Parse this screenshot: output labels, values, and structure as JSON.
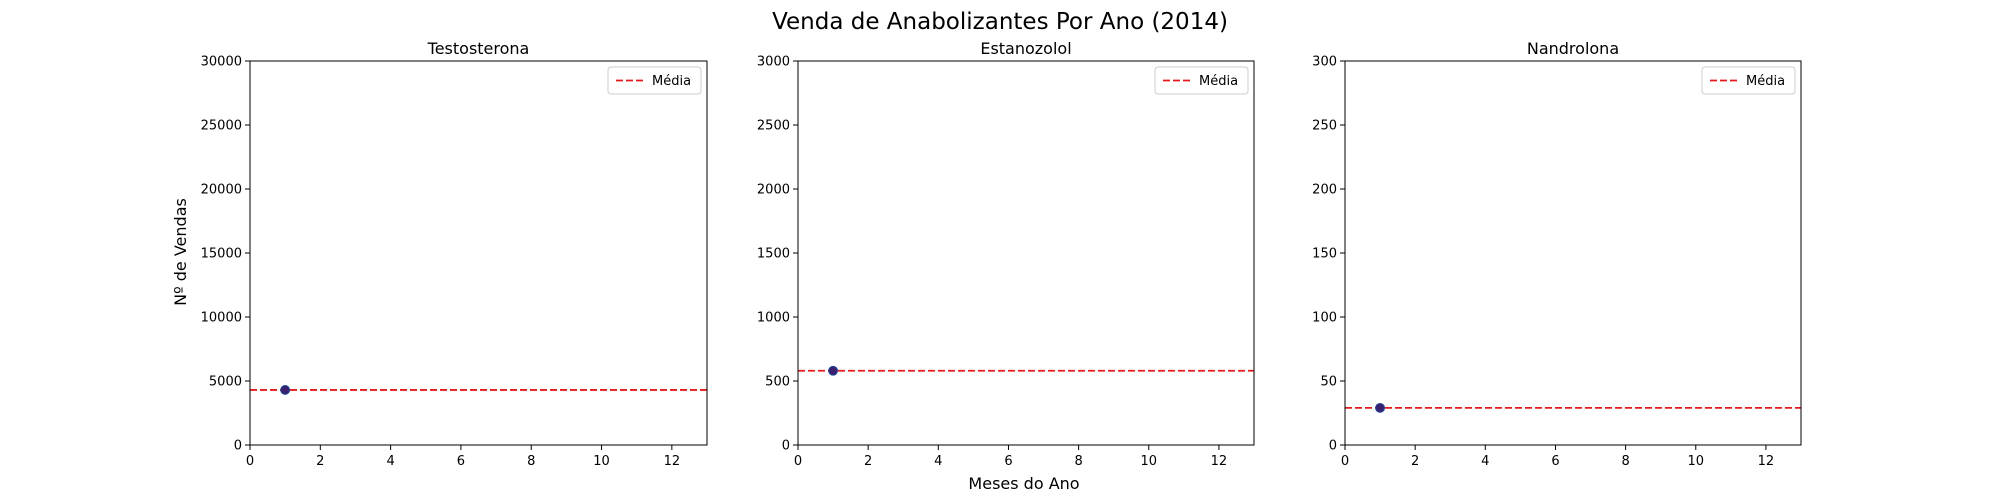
{
  "figure": {
    "title": "Venda de Anabolizantes Por Ano (2014)",
    "xlabel": "Meses do Ano",
    "ylabel": "Nº de Vendas"
  },
  "colors": {
    "marker_fill": "#3b1f6e",
    "marker_edge": "#1f3f8f",
    "mean_line": "#e41a1c",
    "axes": "#000000"
  },
  "chart_data": [
    {
      "type": "scatter",
      "title": "Testosterona",
      "x": [
        1
      ],
      "y": [
        4300
      ],
      "xlim": [
        0,
        13
      ],
      "ylim": [
        0,
        30000
      ],
      "xticks": [
        0,
        2,
        4,
        6,
        8,
        10,
        12
      ],
      "yticks": [
        0,
        5000,
        10000,
        15000,
        20000,
        25000,
        30000
      ],
      "mean": 4300,
      "legend": [
        "Média"
      ],
      "legend_position": "upper-right",
      "grid": false
    },
    {
      "type": "scatter",
      "title": "Estanozolol",
      "x": [
        1
      ],
      "y": [
        580
      ],
      "xlim": [
        0,
        13
      ],
      "ylim": [
        0,
        3000
      ],
      "xticks": [
        0,
        2,
        4,
        6,
        8,
        10,
        12
      ],
      "yticks": [
        0,
        500,
        1000,
        1500,
        2000,
        2500,
        3000
      ],
      "mean": 580,
      "legend": [
        "Média"
      ],
      "legend_position": "upper-right",
      "grid": false
    },
    {
      "type": "scatter",
      "title": "Nandrolona",
      "x": [
        1
      ],
      "y": [
        29
      ],
      "xlim": [
        0,
        13
      ],
      "ylim": [
        0,
        300
      ],
      "xticks": [
        0,
        2,
        4,
        6,
        8,
        10,
        12
      ],
      "yticks": [
        0,
        50,
        100,
        150,
        200,
        250,
        300
      ],
      "mean": 29,
      "legend": [
        "Média"
      ],
      "legend_position": "upper-right",
      "grid": false
    }
  ]
}
